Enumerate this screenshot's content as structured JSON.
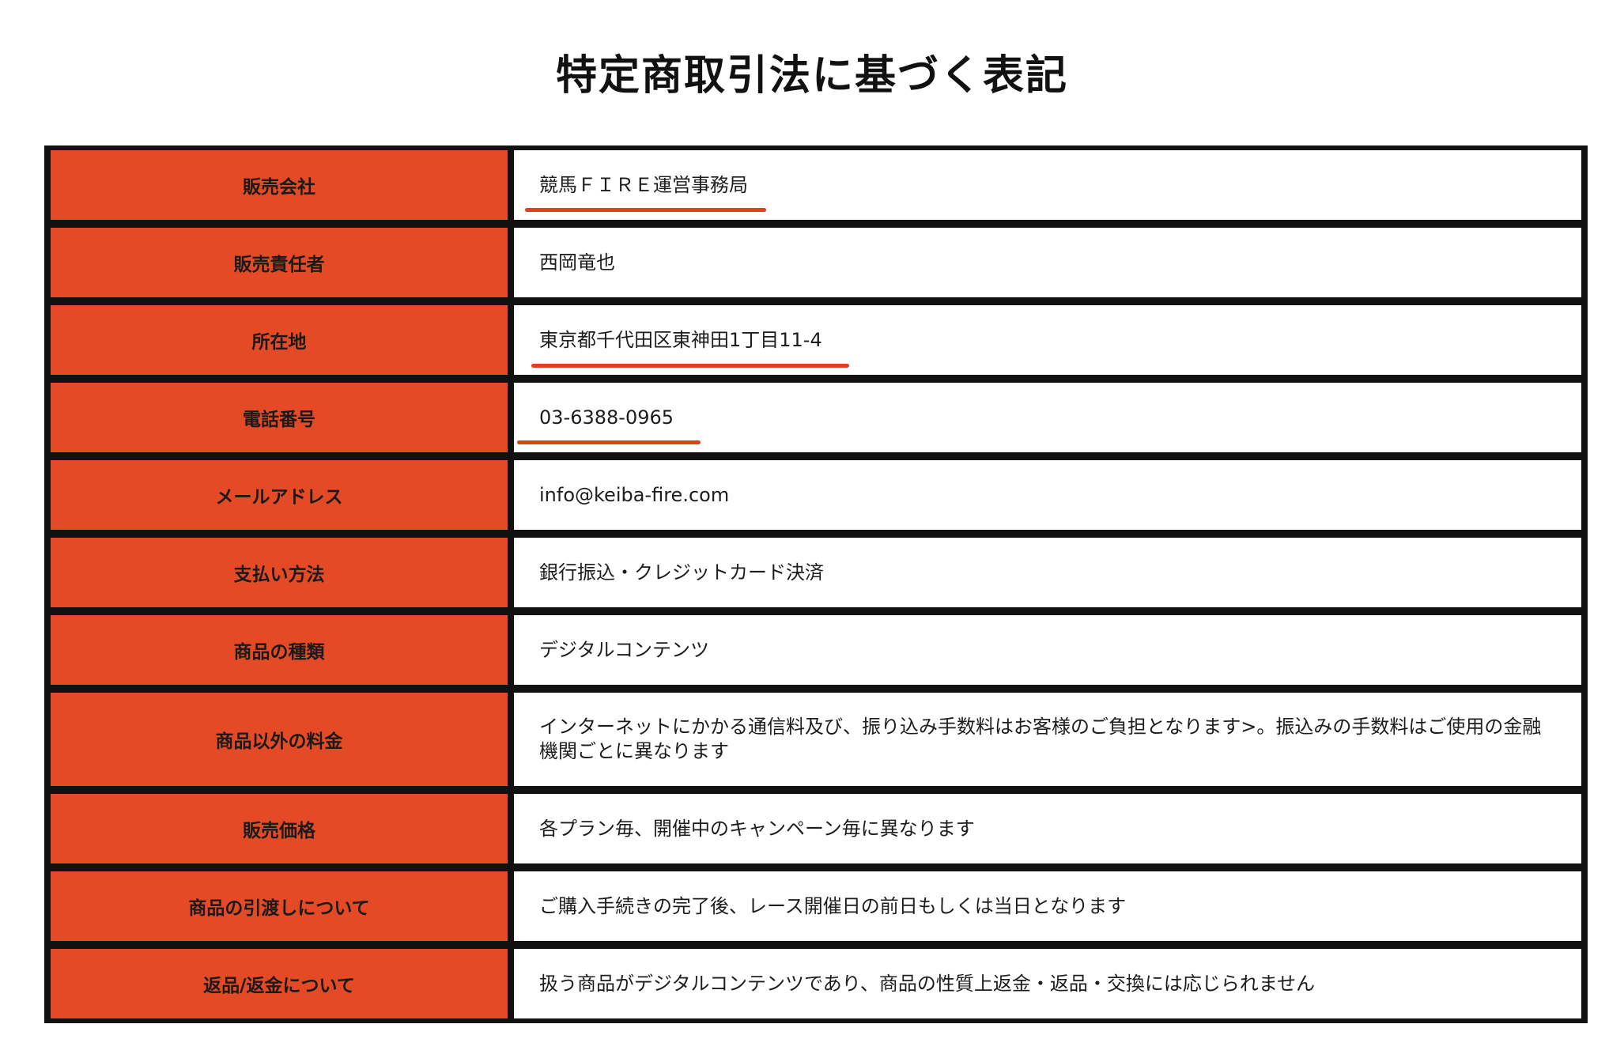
{
  "page": {
    "title": "特定商取引法に基づく表記"
  },
  "colors": {
    "label_background": "#e44a25",
    "border": "#111111",
    "underline_marker": "#e0401d"
  },
  "rows": [
    {
      "label": "販売会社",
      "value": "競馬ＦＩＲＥ運営事務局",
      "underlined": true
    },
    {
      "label": "販売責任者",
      "value": "西岡竜也",
      "underlined": false
    },
    {
      "label": "所在地",
      "value": "東京都千代田区東神田1丁目11-4",
      "underlined": true
    },
    {
      "label": "電話番号",
      "value": "03-6388-0965",
      "underlined": true
    },
    {
      "label": "メールアドレス",
      "value": "info@keiba-fire.com",
      "underlined": false
    },
    {
      "label": "支払い方法",
      "value": "銀行振込・クレジットカード決済",
      "underlined": false
    },
    {
      "label": "商品の種類",
      "value": "デジタルコンテンツ",
      "underlined": false
    },
    {
      "label": "商品以外の料金",
      "value": "インターネットにかかる通信料及び、振り込み手数料はお客様のご負担となります>。振込みの手数料はご使用の金融機関ごとに異なります",
      "underlined": false
    },
    {
      "label": "販売価格",
      "value": "各プラン毎、開催中のキャンペーン毎に異なります",
      "underlined": false
    },
    {
      "label": "商品の引渡しについて",
      "value": "ご購入手続きの完了後、レース開催日の前日もしくは当日となります",
      "underlined": false
    },
    {
      "label": "返品/返金について",
      "value": "扱う商品がデジタルコンテンツであり、商品の性質上返金・返品・交換には応じられません",
      "underlined": false
    }
  ]
}
